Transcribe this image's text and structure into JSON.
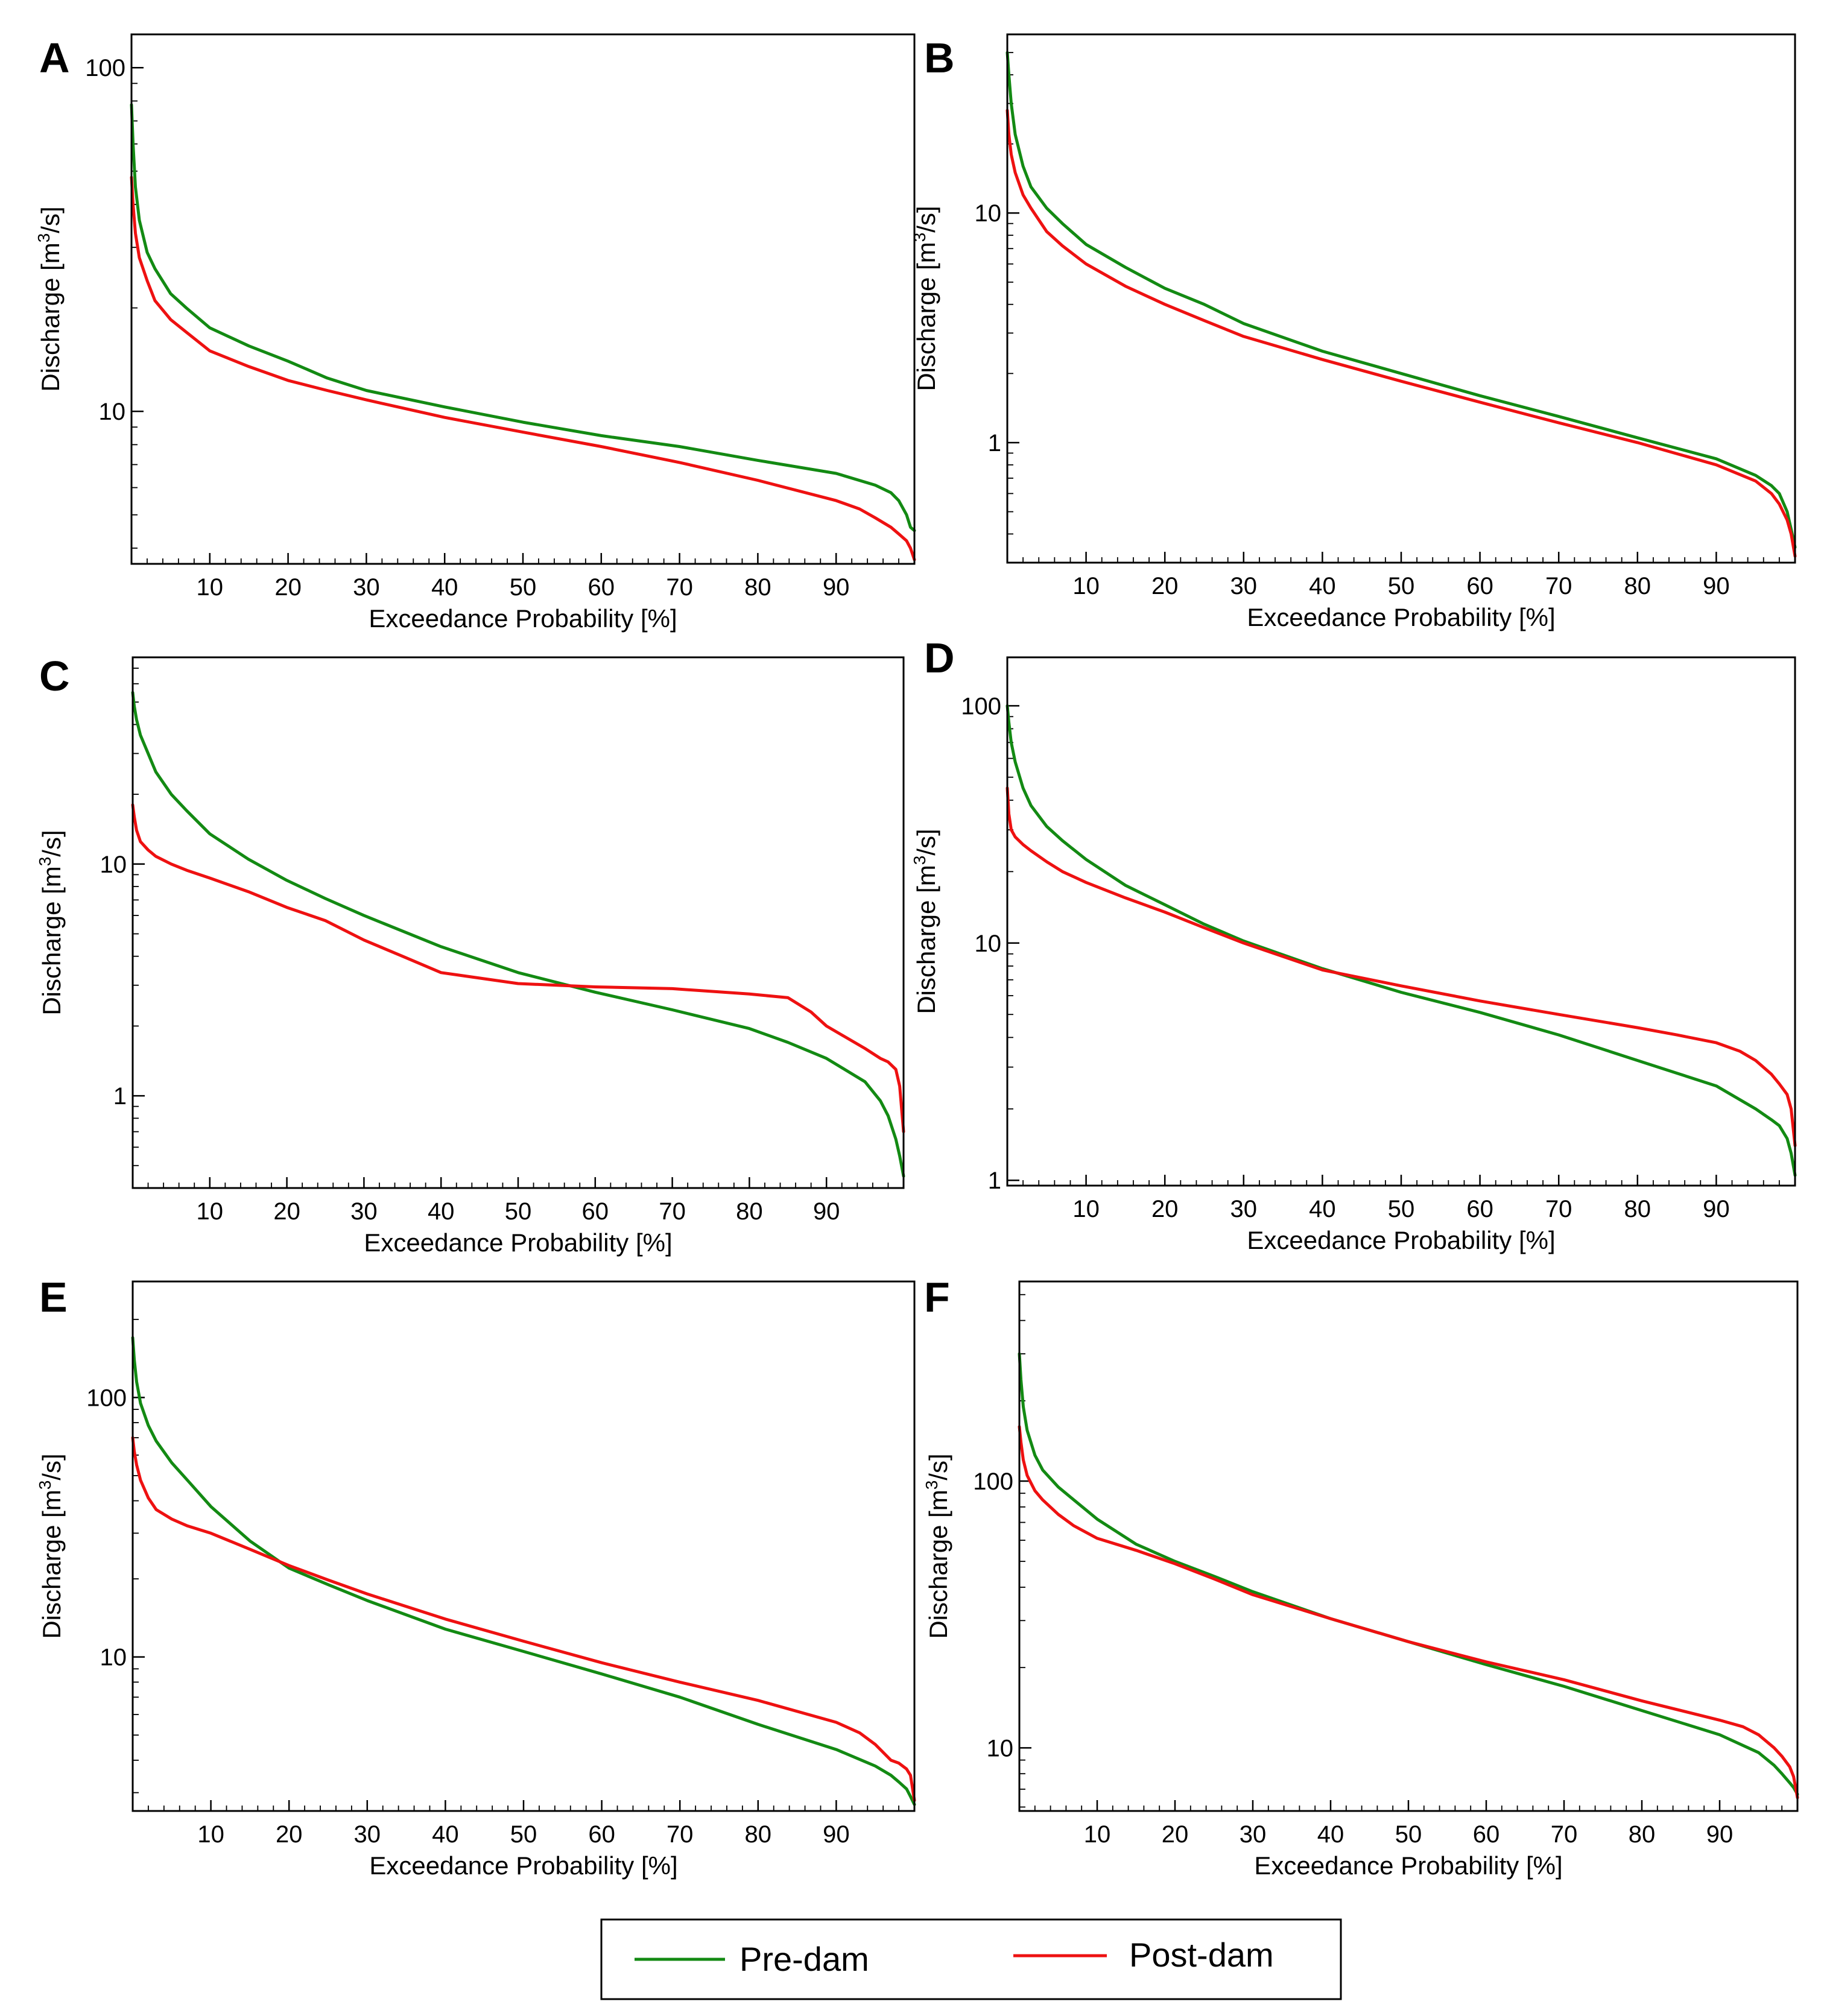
{
  "colors": {
    "pre_dam": "#138a13",
    "post_dam": "#ee1111",
    "axis": "#000000"
  },
  "legend": {
    "entries": [
      {
        "name": "Pre-dam",
        "color": "#138a13"
      },
      {
        "name": "Post-dam",
        "color": "#ee1111"
      }
    ]
  },
  "chart_data": [
    {
      "type": "line",
      "panel": "A",
      "yscale": "log",
      "xlabel": "Exceedance Probability [%]",
      "ylabel": "Discharge [m3/s]",
      "xlim": [
        0,
        100
      ],
      "ylim": [
        3.6,
        125
      ],
      "xticks": [
        10,
        20,
        30,
        40,
        50,
        60,
        70,
        80,
        90
      ],
      "yticks": [
        10,
        100
      ],
      "series": [
        {
          "name": "Pre-dam",
          "x": [
            0,
            0.2,
            0.5,
            1,
            2,
            3,
            5,
            7,
            10,
            15,
            20,
            25,
            30,
            40,
            50,
            60,
            70,
            80,
            90,
            95,
            97,
            98,
            99,
            99.5,
            100
          ],
          "y": [
            78,
            60,
            45,
            36,
            29,
            26,
            22,
            20,
            17.5,
            15.5,
            14,
            12.5,
            11.5,
            10.3,
            9.3,
            8.5,
            7.9,
            7.2,
            6.6,
            6.1,
            5.8,
            5.5,
            5,
            4.6,
            4.5
          ]
        },
        {
          "name": "Post-dam",
          "x": [
            0,
            0.2,
            0.5,
            1,
            2,
            3,
            5,
            7,
            10,
            15,
            20,
            25,
            30,
            40,
            50,
            60,
            70,
            80,
            90,
            93,
            95,
            97,
            98,
            99,
            99.5,
            100
          ],
          "y": [
            48,
            40,
            33,
            28,
            24,
            21,
            18.5,
            17,
            15,
            13.5,
            12.3,
            11.5,
            10.8,
            9.6,
            8.7,
            7.9,
            7.1,
            6.3,
            5.5,
            5.2,
            4.9,
            4.6,
            4.4,
            4.2,
            4,
            3.7
          ]
        }
      ]
    },
    {
      "type": "line",
      "panel": "B",
      "yscale": "log",
      "xlabel": "Exceedance Probability [%]",
      "ylabel": "Discharge [m3/s]",
      "xlim": [
        0,
        100
      ],
      "ylim": [
        0.3,
        60
      ],
      "xticks": [
        10,
        20,
        30,
        40,
        50,
        60,
        70,
        80,
        90
      ],
      "yticks": [
        1,
        10
      ],
      "series": [
        {
          "name": "Pre-dam",
          "x": [
            0,
            0.2,
            0.5,
            1,
            2,
            3,
            5,
            7,
            10,
            15,
            20,
            25,
            30,
            40,
            50,
            60,
            70,
            80,
            90,
            95,
            97,
            98,
            99,
            99.5,
            100
          ],
          "y": [
            50,
            40,
            30,
            22,
            16,
            13,
            10.5,
            9,
            7.3,
            5.8,
            4.7,
            4,
            3.3,
            2.5,
            2,
            1.6,
            1.3,
            1.05,
            0.85,
            0.72,
            0.65,
            0.6,
            0.5,
            0.42,
            0.35
          ]
        },
        {
          "name": "Post-dam",
          "x": [
            0,
            0.2,
            0.5,
            1,
            2,
            3,
            5,
            7,
            10,
            15,
            20,
            25,
            30,
            40,
            50,
            60,
            70,
            80,
            90,
            95,
            97,
            98,
            99,
            99.5,
            100
          ],
          "y": [
            28,
            22,
            18,
            15,
            12,
            10.5,
            8.3,
            7.2,
            6,
            4.8,
            4,
            3.4,
            2.9,
            2.3,
            1.85,
            1.5,
            1.22,
            1,
            0.8,
            0.68,
            0.6,
            0.54,
            0.46,
            0.4,
            0.32
          ]
        }
      ]
    },
    {
      "type": "line",
      "panel": "C",
      "yscale": "log",
      "xlabel": "Exceedance Probability [%]",
      "ylabel": "Discharge [m3/s]",
      "xlim": [
        0,
        100
      ],
      "ylim": [
        0.4,
        78
      ],
      "xticks": [
        10,
        20,
        30,
        40,
        50,
        60,
        70,
        80,
        90
      ],
      "yticks": [
        1,
        10
      ],
      "series": [
        {
          "name": "Pre-dam",
          "x": [
            0,
            0.2,
            0.5,
            1,
            2,
            3,
            5,
            7,
            10,
            15,
            20,
            25,
            30,
            40,
            50,
            60,
            70,
            80,
            85,
            90,
            95,
            97,
            98,
            99,
            99.5,
            100
          ],
          "y": [
            55,
            48,
            42,
            36,
            30,
            25,
            20,
            17,
            13.5,
            10.5,
            8.5,
            7.1,
            6,
            4.4,
            3.4,
            2.8,
            2.35,
            1.95,
            1.7,
            1.45,
            1.15,
            0.95,
            0.82,
            0.65,
            0.55,
            0.45
          ]
        },
        {
          "name": "Post-dam",
          "x": [
            0,
            0.2,
            0.5,
            1,
            2,
            3,
            5,
            7,
            10,
            15,
            20,
            25,
            30,
            35,
            40,
            50,
            60,
            70,
            80,
            85,
            88,
            90,
            95,
            97,
            98,
            99,
            99.5,
            100
          ],
          "y": [
            18,
            16,
            14,
            12.5,
            11.5,
            10.8,
            10,
            9.4,
            8.7,
            7.6,
            6.5,
            5.7,
            4.7,
            4,
            3.4,
            3.05,
            2.95,
            2.9,
            2.75,
            2.65,
            2.3,
            2,
            1.6,
            1.45,
            1.4,
            1.3,
            1.1,
            0.7
          ]
        }
      ]
    },
    {
      "type": "line",
      "panel": "D",
      "yscale": "log",
      "xlabel": "Exceedance Probability [%]",
      "ylabel": "Discharge [m3/s]",
      "xlim": [
        0,
        100
      ],
      "ylim": [
        0.95,
        160
      ],
      "xticks": [
        10,
        20,
        30,
        40,
        50,
        60,
        70,
        80,
        90
      ],
      "yticks": [
        1,
        10,
        100
      ],
      "series": [
        {
          "name": "Pre-dam",
          "x": [
            0,
            0.2,
            0.5,
            1,
            2,
            3,
            5,
            7,
            10,
            15,
            20,
            25,
            30,
            40,
            50,
            60,
            70,
            80,
            90,
            95,
            97,
            98,
            99,
            99.5,
            100
          ],
          "y": [
            100,
            85,
            70,
            58,
            45,
            38,
            31,
            27,
            22.5,
            17.5,
            14.5,
            12,
            10.2,
            7.8,
            6.2,
            5.1,
            4.1,
            3.2,
            2.5,
            2,
            1.8,
            1.7,
            1.5,
            1.3,
            1.05
          ]
        },
        {
          "name": "Post-dam",
          "x": [
            0,
            0.2,
            0.5,
            1,
            2,
            3,
            5,
            7,
            10,
            15,
            20,
            25,
            30,
            40,
            50,
            60,
            70,
            80,
            85,
            90,
            93,
            95,
            97,
            98,
            99,
            99.5,
            100
          ],
          "y": [
            45,
            35,
            30,
            28,
            26,
            24.5,
            22,
            20,
            18,
            15.5,
            13.5,
            11.6,
            10,
            7.7,
            6.6,
            5.7,
            5,
            4.4,
            4.1,
            3.8,
            3.5,
            3.2,
            2.8,
            2.55,
            2.3,
            2,
            1.4
          ]
        }
      ]
    },
    {
      "type": "line",
      "panel": "E",
      "yscale": "log",
      "xlabel": "Exceedance Probability [%]",
      "ylabel": "Discharge [m3/s]",
      "xlim": [
        0,
        100
      ],
      "ylim": [
        2.55,
        280
      ],
      "xticks": [
        10,
        20,
        30,
        40,
        50,
        60,
        70,
        80,
        90
      ],
      "yticks": [
        10,
        100
      ],
      "series": [
        {
          "name": "Pre-dam",
          "x": [
            0,
            0.2,
            0.5,
            1,
            2,
            3,
            5,
            7,
            10,
            15,
            20,
            25,
            30,
            40,
            50,
            60,
            70,
            80,
            90,
            95,
            97,
            98,
            99,
            99.5,
            100
          ],
          "y": [
            170,
            140,
            115,
            95,
            78,
            68,
            56,
            48,
            38,
            28,
            22,
            19,
            16.5,
            12.8,
            10.5,
            8.6,
            7,
            5.5,
            4.4,
            3.8,
            3.5,
            3.3,
            3.1,
            2.9,
            2.7
          ]
        },
        {
          "name": "Post-dam",
          "x": [
            0,
            0.2,
            0.5,
            1,
            2,
            3,
            5,
            7,
            10,
            15,
            20,
            25,
            30,
            40,
            50,
            60,
            70,
            80,
            90,
            93,
            95,
            97,
            98,
            99,
            99.5,
            100
          ],
          "y": [
            70,
            62,
            55,
            48,
            41,
            37,
            34,
            32,
            30,
            26,
            22.5,
            19.8,
            17.5,
            14,
            11.5,
            9.5,
            8,
            6.8,
            5.6,
            5.1,
            4.6,
            4,
            3.9,
            3.7,
            3.5,
            2.8
          ]
        }
      ]
    },
    {
      "type": "line",
      "panel": "F",
      "yscale": "log",
      "xlabel": "Exceedance Probability [%]",
      "ylabel": "Discharge [m3/s]",
      "xlim": [
        0,
        100
      ],
      "ylim": [
        5.8,
        560
      ],
      "xticks": [
        10,
        20,
        30,
        40,
        50,
        60,
        70,
        80,
        90
      ],
      "yticks": [
        10,
        100
      ],
      "series": [
        {
          "name": "Pre-dam",
          "x": [
            0,
            0.2,
            0.5,
            1,
            2,
            3,
            5,
            7,
            10,
            15,
            20,
            25,
            30,
            40,
            50,
            60,
            70,
            80,
            90,
            95,
            97,
            98,
            99,
            99.5,
            100
          ],
          "y": [
            300,
            240,
            190,
            155,
            125,
            110,
            95,
            85,
            72,
            58,
            50,
            44,
            38.5,
            30.5,
            25,
            20.5,
            17,
            13.8,
            11.2,
            9.6,
            8.6,
            8,
            7.4,
            7.1,
            6.7
          ]
        },
        {
          "name": "Post-dam",
          "x": [
            0,
            0.2,
            0.5,
            1,
            2,
            3,
            5,
            7,
            10,
            15,
            20,
            25,
            30,
            40,
            50,
            60,
            70,
            80,
            90,
            93,
            95,
            97,
            98,
            99,
            99.5,
            100
          ],
          "y": [
            160,
            140,
            120,
            105,
            92,
            85,
            75,
            68,
            61,
            55,
            49,
            43,
            37.5,
            30.5,
            25,
            21,
            18,
            15,
            12.7,
            12,
            11.2,
            10,
            9.3,
            8.5,
            7.8,
            6.5
          ]
        }
      ]
    }
  ]
}
